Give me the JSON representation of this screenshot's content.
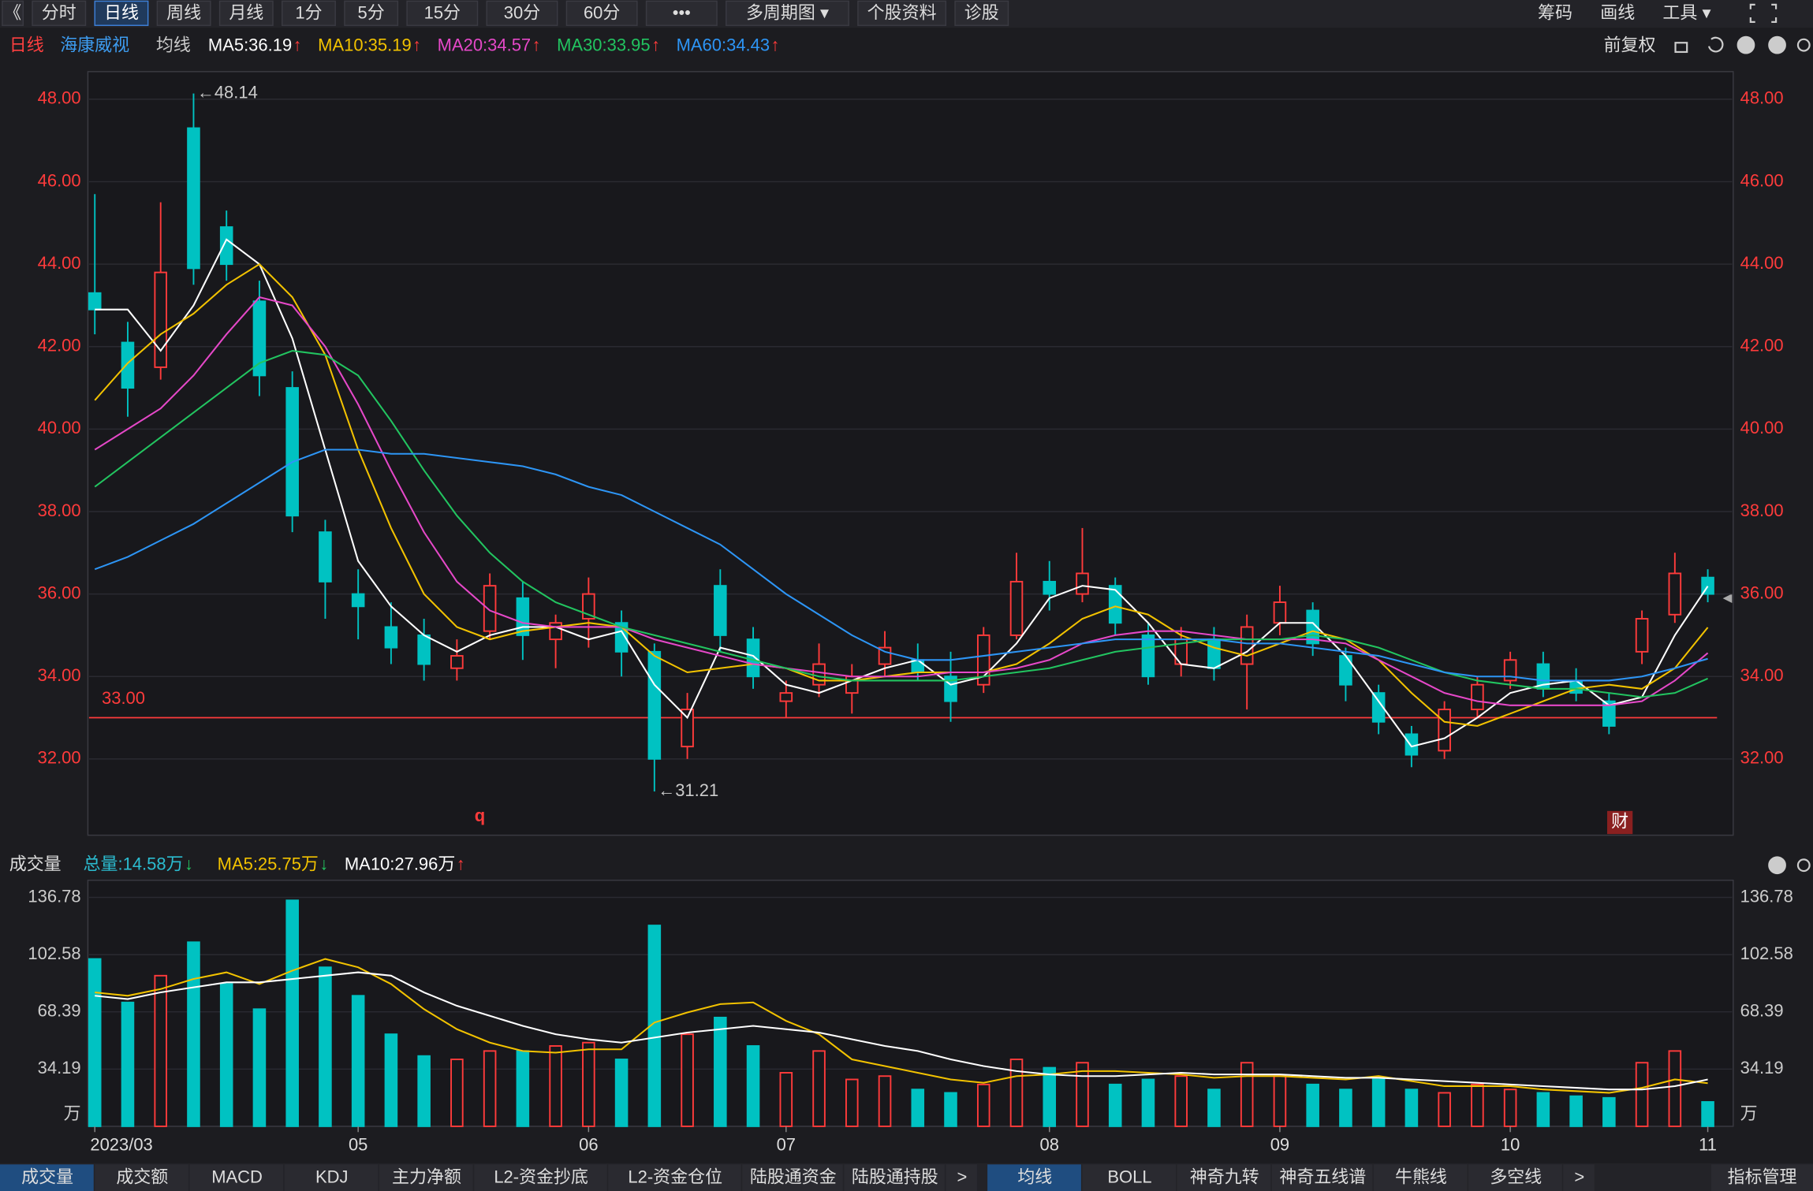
{
  "ui": {
    "toolbar": [
      "《",
      "分时",
      "日线",
      "周线",
      "月线",
      "1分",
      "5分",
      "15分",
      "30分",
      "60分",
      "•••",
      "多周期图 ▾",
      "个股资料",
      "诊股"
    ],
    "toolbar_selected": "日线",
    "toolbar_right": [
      "筹码",
      "画线",
      "工具 ▾"
    ],
    "period": "日线",
    "stock": "海康威视",
    "ma_label": "均线",
    "fq": "前复权",
    "marker_q": "q",
    "marker_cai": "财",
    "tabs_left": [
      "成交量",
      "成交额",
      "MACD",
      "KDJ",
      "主力净额",
      "L2-资金抄底",
      "L2-资金仓位",
      "陆股通资金",
      "陆股通持股",
      ">"
    ],
    "tabs_right": [
      "均线",
      "BOLL",
      "神奇九转",
      "神奇五线谱",
      "牛熊线",
      "多空线",
      ">"
    ],
    "tab_manage": "指标管理"
  },
  "chart_data": [
    {
      "type": "candlestick",
      "up_color": "#ff3b3b",
      "down_color": "#00c2c2",
      "ohlc": [
        [
          43.3,
          45.7,
          42.3,
          42.9
        ],
        [
          42.1,
          42.6,
          40.3,
          41.0
        ],
        [
          41.5,
          45.5,
          41.2,
          43.8
        ],
        [
          47.3,
          48.14,
          43.5,
          43.9
        ],
        [
          44.9,
          45.3,
          43.6,
          44.0
        ],
        [
          43.1,
          43.6,
          40.8,
          41.3
        ],
        [
          41.0,
          41.4,
          37.5,
          37.9
        ],
        [
          37.5,
          37.8,
          35.4,
          36.3
        ],
        [
          36.0,
          36.6,
          34.9,
          35.7
        ],
        [
          35.2,
          35.8,
          34.3,
          34.7
        ],
        [
          35.0,
          35.4,
          33.9,
          34.3
        ],
        [
          34.2,
          34.9,
          33.9,
          34.5
        ],
        [
          35.1,
          36.5,
          34.9,
          36.2
        ],
        [
          35.9,
          36.3,
          34.4,
          35.0
        ],
        [
          34.9,
          35.5,
          34.2,
          35.3
        ],
        [
          35.4,
          36.4,
          34.7,
          36.0
        ],
        [
          35.3,
          35.6,
          34.0,
          34.6
        ],
        [
          34.6,
          34.8,
          31.21,
          32.0
        ],
        [
          32.3,
          33.6,
          32.0,
          33.2
        ],
        [
          36.2,
          36.6,
          34.6,
          35.0
        ],
        [
          34.9,
          35.2,
          33.7,
          34.0
        ],
        [
          33.4,
          33.9,
          33.0,
          33.6
        ],
        [
          33.8,
          34.8,
          33.5,
          34.3
        ],
        [
          33.6,
          34.3,
          33.1,
          34.0
        ],
        [
          34.3,
          35.1,
          34.0,
          34.7
        ],
        [
          34.4,
          34.8,
          33.9,
          34.1
        ],
        [
          34.0,
          34.6,
          32.9,
          33.4
        ],
        [
          33.8,
          35.2,
          33.6,
          35.0
        ],
        [
          35.0,
          37.0,
          34.9,
          36.3
        ],
        [
          36.3,
          36.8,
          35.6,
          36.0
        ],
        [
          36.0,
          37.6,
          35.8,
          36.5
        ],
        [
          36.2,
          36.4,
          35.0,
          35.3
        ],
        [
          35.0,
          35.3,
          33.8,
          34.0
        ],
        [
          34.3,
          35.2,
          34.0,
          34.9
        ],
        [
          34.9,
          35.2,
          33.9,
          34.2
        ],
        [
          34.3,
          35.5,
          33.2,
          35.2
        ],
        [
          35.3,
          36.2,
          35.0,
          35.8
        ],
        [
          35.6,
          35.8,
          34.5,
          34.8
        ],
        [
          34.5,
          34.7,
          33.4,
          33.8
        ],
        [
          33.6,
          33.8,
          32.6,
          32.9
        ],
        [
          32.6,
          32.8,
          31.8,
          32.1
        ],
        [
          32.2,
          33.4,
          32.0,
          33.2
        ],
        [
          33.2,
          34.0,
          33.0,
          33.8
        ],
        [
          33.9,
          34.6,
          33.7,
          34.4
        ],
        [
          34.3,
          34.6,
          33.5,
          33.7
        ],
        [
          33.9,
          34.2,
          33.4,
          33.6
        ],
        [
          33.4,
          33.6,
          32.6,
          32.8
        ],
        [
          34.6,
          35.6,
          34.3,
          35.4
        ],
        [
          35.5,
          37.0,
          35.3,
          36.5
        ],
        [
          36.4,
          36.6,
          35.8,
          36.0
        ]
      ],
      "series": [
        {
          "name": "MA5:36.19",
          "arrow": "↑",
          "color": "#ffffff",
          "values": [
            42.9,
            42.9,
            41.9,
            43.0,
            44.6,
            44.0,
            42.2,
            39.5,
            36.8,
            35.7,
            35.0,
            34.6,
            35.0,
            35.2,
            35.2,
            34.9,
            35.1,
            33.8,
            33.0,
            34.7,
            34.5,
            33.8,
            33.6,
            33.9,
            34.2,
            34.4,
            33.8,
            34.0,
            34.8,
            35.9,
            36.2,
            36.1,
            35.3,
            34.3,
            34.2,
            34.6,
            35.3,
            35.3,
            34.5,
            33.4,
            32.3,
            32.5,
            33.0,
            33.6,
            33.8,
            33.9,
            33.3,
            33.5,
            35.0,
            36.19
          ]
        },
        {
          "name": "MA10:35.19",
          "arrow": "↑",
          "color": "#f2c200",
          "values": [
            40.7,
            41.6,
            42.3,
            42.8,
            43.5,
            44.0,
            43.2,
            41.8,
            39.5,
            37.6,
            36.0,
            35.2,
            34.9,
            35.1,
            35.2,
            35.3,
            35.2,
            34.5,
            34.1,
            34.2,
            34.3,
            34.2,
            33.9,
            33.9,
            34.0,
            34.1,
            34.1,
            34.1,
            34.3,
            34.8,
            35.4,
            35.7,
            35.5,
            35.0,
            34.7,
            34.5,
            34.8,
            35.1,
            34.9,
            34.4,
            33.6,
            32.9,
            32.8,
            33.1,
            33.4,
            33.7,
            33.8,
            33.7,
            34.2,
            35.19
          ]
        },
        {
          "name": "MA20:34.57",
          "arrow": "↑",
          "color": "#e548c8",
          "values": [
            39.5,
            40.0,
            40.5,
            41.3,
            42.3,
            43.2,
            43.0,
            42.0,
            40.6,
            39.0,
            37.5,
            36.3,
            35.6,
            35.3,
            35.2,
            35.2,
            35.2,
            34.9,
            34.7,
            34.5,
            34.3,
            34.2,
            34.1,
            34.0,
            34.0,
            34.0,
            34.1,
            34.1,
            34.2,
            34.4,
            34.8,
            35.0,
            35.1,
            35.1,
            35.0,
            34.9,
            34.9,
            34.9,
            34.8,
            34.4,
            34.0,
            33.6,
            33.4,
            33.3,
            33.3,
            33.3,
            33.3,
            33.4,
            33.9,
            34.57
          ]
        },
        {
          "name": "MA30:33.95",
          "arrow": "↑",
          "color": "#22c460",
          "values": [
            38.6,
            39.2,
            39.8,
            40.4,
            41.0,
            41.6,
            41.9,
            41.8,
            41.3,
            40.2,
            39.0,
            37.9,
            37.0,
            36.3,
            35.8,
            35.5,
            35.2,
            35.0,
            34.8,
            34.6,
            34.4,
            34.2,
            34.0,
            33.9,
            33.9,
            33.9,
            33.9,
            34.0,
            34.1,
            34.2,
            34.4,
            34.6,
            34.7,
            34.8,
            34.9,
            34.9,
            34.9,
            35.0,
            34.9,
            34.7,
            34.4,
            34.1,
            33.9,
            33.8,
            33.7,
            33.7,
            33.6,
            33.5,
            33.6,
            33.95
          ]
        },
        {
          "name": "MA60:34.43",
          "arrow": "↑",
          "color": "#2d95f5",
          "values": [
            36.6,
            36.9,
            37.3,
            37.7,
            38.2,
            38.7,
            39.2,
            39.5,
            39.5,
            39.4,
            39.4,
            39.3,
            39.2,
            39.1,
            38.9,
            38.6,
            38.4,
            38.0,
            37.6,
            37.2,
            36.6,
            36.0,
            35.5,
            35.0,
            34.6,
            34.4,
            34.4,
            34.5,
            34.6,
            34.7,
            34.8,
            34.9,
            34.9,
            34.9,
            34.9,
            34.8,
            34.8,
            34.7,
            34.6,
            34.5,
            34.3,
            34.1,
            34.0,
            34.0,
            33.9,
            33.9,
            33.9,
            34.0,
            34.2,
            34.43
          ]
        }
      ],
      "ylim": [
        30.15,
        48.67
      ],
      "yticks": [
        {
          "value": 32,
          "label": "32.00"
        },
        {
          "value": 34,
          "label": "34.00"
        },
        {
          "value": 36,
          "label": "36.00"
        },
        {
          "value": 38,
          "label": "38.00"
        },
        {
          "value": 40,
          "label": "40.00"
        },
        {
          "value": 42,
          "label": "42.00"
        },
        {
          "value": 44,
          "label": "44.00"
        },
        {
          "value": 46,
          "label": "46.00"
        },
        {
          "value": 48,
          "label": "48.00"
        }
      ],
      "grid": true,
      "hline": {
        "value": 33,
        "label": "33.00",
        "color": "#ff3b3b"
      },
      "annotations": [
        {
          "value": 48.14,
          "label": "←48.14"
        },
        {
          "value": 31.21,
          "label": "←31.21"
        }
      ]
    },
    {
      "type": "bar",
      "title": "成交量",
      "unit": "万",
      "categories": [
        "2023/03",
        null,
        null,
        null,
        null,
        null,
        null,
        null,
        "05",
        null,
        null,
        null,
        null,
        null,
        null,
        "06",
        null,
        null,
        null,
        null,
        null,
        "07",
        null,
        null,
        null,
        null,
        null,
        null,
        null,
        "08",
        null,
        null,
        null,
        null,
        null,
        null,
        "09",
        null,
        null,
        null,
        null,
        null,
        null,
        "10",
        null,
        null,
        null,
        null,
        null,
        "11"
      ],
      "total_label": "总量:14.58万",
      "total_arrow": "↓",
      "total_color": "#2bbcd0",
      "values": [
        100,
        74,
        90,
        110,
        85,
        70,
        135,
        95,
        78,
        55,
        42,
        40,
        45,
        45,
        48,
        50,
        40,
        120,
        55,
        65,
        48,
        32,
        45,
        28,
        30,
        22,
        20,
        25,
        40,
        35,
        38,
        25,
        28,
        30,
        22,
        38,
        30,
        25,
        22,
        28,
        22,
        20,
        25,
        22,
        20,
        18,
        17,
        38,
        45,
        14.58
      ],
      "series": [
        {
          "name": "MA5:25.75万",
          "arrow": "↓",
          "color": "#f2c200",
          "values": [
            80,
            78,
            82,
            88,
            92,
            85,
            93,
            100,
            95,
            85,
            70,
            58,
            50,
            45,
            44,
            46,
            46,
            62,
            68,
            73,
            74,
            63,
            55,
            40,
            36,
            32,
            28,
            26,
            30,
            31,
            33,
            33,
            32,
            31,
            29,
            30,
            30,
            29,
            28,
            30,
            27,
            24,
            24,
            24,
            22,
            21,
            20,
            23,
            28,
            25.75
          ]
        },
        {
          "name": "MA10:27.96万",
          "arrow": "↑",
          "color": "#ffffff",
          "values": [
            78,
            76,
            80,
            83,
            86,
            86,
            88,
            90,
            92,
            90,
            80,
            72,
            66,
            60,
            55,
            52,
            50,
            53,
            56,
            58,
            60,
            58,
            56,
            52,
            48,
            45,
            40,
            36,
            33,
            31,
            30,
            30,
            31,
            32,
            31,
            31,
            31,
            30,
            29,
            29,
            28,
            27,
            26,
            25,
            24,
            23,
            22,
            22,
            24,
            27.96
          ]
        }
      ],
      "ylim": [
        0,
        147
      ],
      "yticks": [
        34.19,
        68.39,
        102.58,
        136.78
      ],
      "grid": true
    }
  ]
}
